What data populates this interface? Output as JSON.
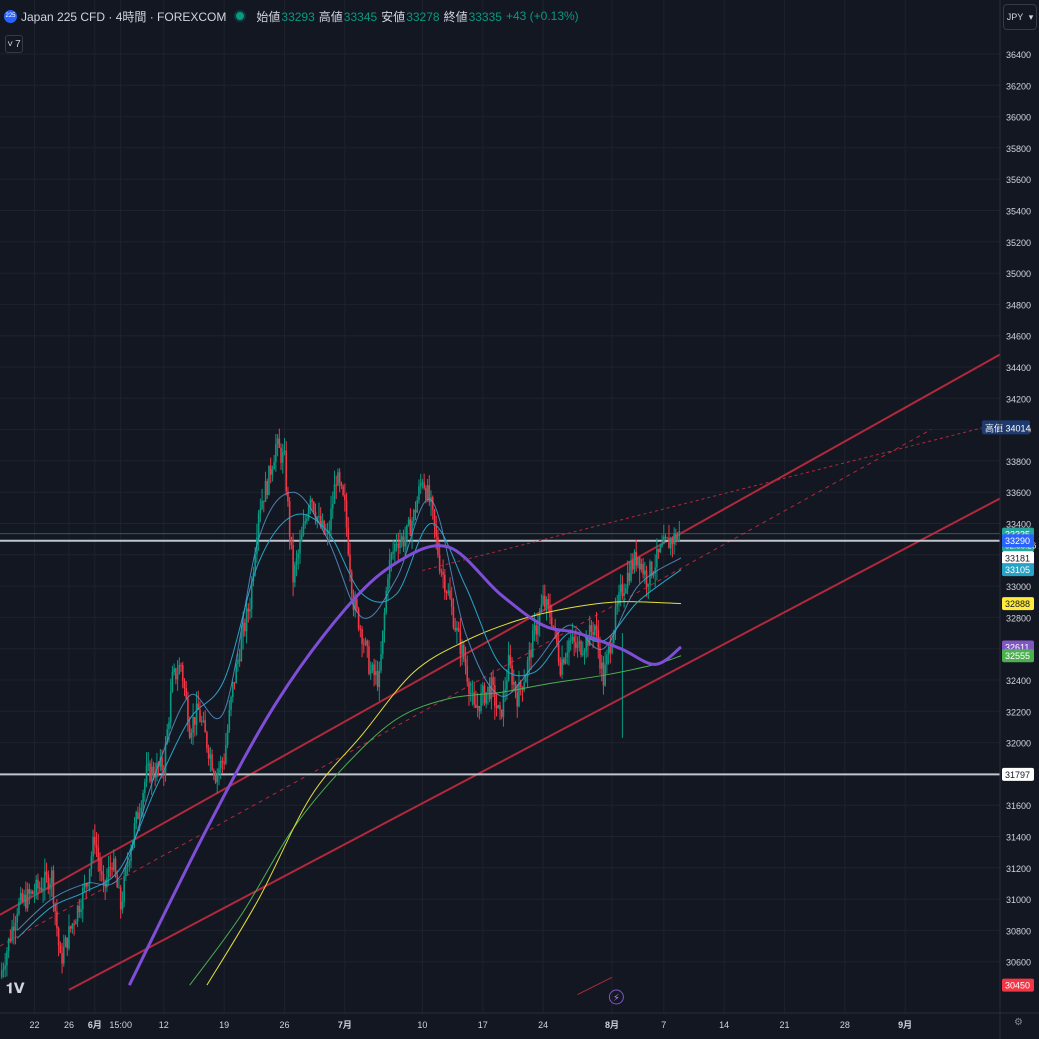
{
  "header": {
    "badge": "225",
    "title": "Japan 225 CFD · 4時間 · FOREXCOM",
    "ohlc": [
      {
        "label": "始値",
        "value": "33293"
      },
      {
        "label": "高値",
        "value": "33345"
      },
      {
        "label": "安値",
        "value": "33278"
      },
      {
        "label": "終値",
        "value": "33335"
      },
      {
        "label": "",
        "value": "+43 (+0.13%)"
      }
    ],
    "indicator_toggle": "7"
  },
  "currency": "JPY",
  "colors": {
    "background": "#131722",
    "up": "#089981",
    "down": "#f23645",
    "channel": "#b2283c",
    "ma_purple": "#7e4fd6",
    "ma_yellow": "#e6e03c",
    "ma_green": "#4caf50",
    "ma_teal": "#26a3c7"
  },
  "chart_data": {
    "type": "candlestick",
    "y_axis": {
      "range": [
        30400,
        36500
      ],
      "ticks": [
        36400,
        36200,
        36000,
        35800,
        35600,
        35400,
        35200,
        35000,
        34800,
        34600,
        34400,
        34200,
        34000,
        33800,
        33600,
        33400,
        33200,
        33000,
        32800,
        32600,
        32400,
        32200,
        32000,
        31800,
        31600,
        31400,
        31200,
        31000,
        30800,
        30600
      ]
    },
    "x_axis": {
      "range": [
        0,
        116
      ],
      "ticks": [
        {
          "label": "22",
          "t": 4
        },
        {
          "label": "26",
          "t": 8
        },
        {
          "label": "6月",
          "t": 11
        },
        {
          "label": "15:00",
          "t": 14
        },
        {
          "label": "12",
          "t": 19
        },
        {
          "label": "19",
          "t": 26
        },
        {
          "label": "26",
          "t": 33
        },
        {
          "label": "7月",
          "t": 40
        },
        {
          "label": "10",
          "t": 49
        },
        {
          "label": "17",
          "t": 56
        },
        {
          "label": "24",
          "t": 63
        },
        {
          "label": "8月",
          "t": 71
        },
        {
          "label": "7",
          "t": 77
        },
        {
          "label": "14",
          "t": 84
        },
        {
          "label": "21",
          "t": 91
        },
        {
          "label": "28",
          "t": 98
        },
        {
          "label": "9月",
          "t": 105
        }
      ]
    },
    "price_path": [
      [
        0,
        30500
      ],
      [
        2,
        30950
      ],
      [
        4,
        31050
      ],
      [
        6,
        31150
      ],
      [
        7,
        30600
      ],
      [
        8,
        30780
      ],
      [
        10,
        31100
      ],
      [
        11,
        31400
      ],
      [
        12,
        31050
      ],
      [
        13,
        31250
      ],
      [
        14,
        30950
      ],
      [
        15,
        31300
      ],
      [
        17,
        31800
      ],
      [
        19,
        31850
      ],
      [
        20,
        32400
      ],
      [
        21,
        32500
      ],
      [
        22,
        32100
      ],
      [
        23,
        32200
      ],
      [
        25,
        31800
      ],
      [
        26,
        31900
      ],
      [
        27,
        32350
      ],
      [
        28,
        32650
      ],
      [
        29,
        32900
      ],
      [
        30,
        33500
      ],
      [
        31,
        33650
      ],
      [
        32,
        33900
      ],
      [
        33,
        33800
      ],
      [
        34,
        33050
      ],
      [
        35,
        33300
      ],
      [
        36,
        33600
      ],
      [
        37,
        33400
      ],
      [
        38,
        33300
      ],
      [
        39,
        33700
      ],
      [
        40,
        33500
      ],
      [
        41,
        32900
      ],
      [
        42,
        32700
      ],
      [
        43,
        32450
      ],
      [
        44,
        32400
      ],
      [
        45,
        33100
      ],
      [
        46,
        33300
      ],
      [
        47,
        33300
      ],
      [
        48,
        33450
      ],
      [
        49,
        33700
      ],
      [
        50,
        33500
      ],
      [
        51,
        33150
      ],
      [
        52,
        32950
      ],
      [
        53,
        32700
      ],
      [
        54,
        32500
      ],
      [
        55,
        32200
      ],
      [
        56,
        32300
      ],
      [
        57,
        32350
      ],
      [
        58,
        32150
      ],
      [
        59,
        32500
      ],
      [
        60,
        32300
      ],
      [
        61,
        32450
      ],
      [
        62,
        32700
      ],
      [
        63,
        32900
      ],
      [
        64,
        32800
      ],
      [
        65,
        32500
      ],
      [
        66,
        32650
      ],
      [
        67,
        32600
      ],
      [
        68,
        32650
      ],
      [
        69,
        32750
      ],
      [
        70,
        32400
      ],
      [
        71,
        32700
      ],
      [
        72,
        32950
      ],
      [
        73,
        33100
      ],
      [
        74,
        33200
      ],
      [
        75,
        33050
      ],
      [
        76,
        33150
      ],
      [
        77,
        33250
      ],
      [
        78,
        33300
      ],
      [
        79,
        33335
      ]
    ],
    "lines": {
      "ma_purple": [
        [
          15,
          30450
        ],
        [
          24,
          31450
        ],
        [
          32,
          32250
        ],
        [
          40,
          32850
        ],
        [
          46,
          33150
        ],
        [
          52,
          33250
        ],
        [
          58,
          32950
        ],
        [
          63,
          32750
        ],
        [
          67,
          32700
        ],
        [
          72,
          32600
        ],
        [
          76,
          32500
        ],
        [
          79,
          32611
        ]
      ],
      "ma_yellow": [
        [
          24,
          30450
        ],
        [
          30,
          31000
        ],
        [
          36,
          31650
        ],
        [
          42,
          32050
        ],
        [
          48,
          32450
        ],
        [
          54,
          32650
        ],
        [
          60,
          32780
        ],
        [
          66,
          32860
        ],
        [
          72,
          32900
        ],
        [
          79,
          32888
        ]
      ],
      "ma_green": [
        [
          22,
          30450
        ],
        [
          28,
          30900
        ],
        [
          34,
          31450
        ],
        [
          40,
          31850
        ],
        [
          46,
          32150
        ],
        [
          52,
          32280
        ],
        [
          58,
          32320
        ],
        [
          64,
          32380
        ],
        [
          70,
          32430
        ],
        [
          76,
          32500
        ],
        [
          79,
          32555
        ]
      ],
      "ma_teal": [
        [
          2,
          30750
        ],
        [
          6,
          30950
        ],
        [
          10,
          31050
        ],
        [
          14,
          31200
        ],
        [
          18,
          31700
        ],
        [
          22,
          32150
        ],
        [
          26,
          32400
        ],
        [
          30,
          33150
        ],
        [
          34,
          33450
        ],
        [
          38,
          33350
        ],
        [
          42,
          32950
        ],
        [
          46,
          32950
        ],
        [
          50,
          33400
        ],
        [
          54,
          33000
        ],
        [
          58,
          32500
        ],
        [
          62,
          32450
        ],
        [
          66,
          32700
        ],
        [
          70,
          32650
        ],
        [
          74,
          32900
        ],
        [
          79,
          33105
        ]
      ],
      "ma_fast": [
        [
          2,
          30800
        ],
        [
          6,
          31000
        ],
        [
          10,
          31100
        ],
        [
          14,
          31150
        ],
        [
          18,
          31800
        ],
        [
          22,
          32300
        ],
        [
          26,
          32200
        ],
        [
          30,
          33300
        ],
        [
          34,
          33600
        ],
        [
          38,
          33300
        ],
        [
          42,
          32800
        ],
        [
          46,
          33050
        ],
        [
          50,
          33550
        ],
        [
          54,
          32700
        ],
        [
          58,
          32300
        ],
        [
          62,
          32500
        ],
        [
          66,
          32750
        ],
        [
          70,
          32600
        ],
        [
          74,
          33000
        ],
        [
          79,
          33181
        ]
      ]
    },
    "channel": {
      "upper": [
        [
          0,
          30900
        ],
        [
          116,
          34480
        ]
      ],
      "lower": [
        [
          8,
          30420
        ],
        [
          116,
          33560
        ]
      ],
      "mid": [
        [
          0,
          30700
        ],
        [
          108,
          34000
        ]
      ]
    },
    "horizontal_levels": [
      {
        "price": 33290,
        "color": "#c0c4cc"
      },
      {
        "price": 31797,
        "color": "#c0c4cc"
      },
      {
        "price": 33335,
        "color": "#2e7f76"
      }
    ],
    "price_labels": [
      {
        "text": "33335",
        "sub": "02:55:26",
        "price": 33335,
        "bg": "#26a69a",
        "fg": "#ffffff"
      },
      {
        "text": "33290",
        "price": 33290,
        "bg": "#2962ff",
        "fg": "#ffffff"
      },
      {
        "text": "33181",
        "price": 33181,
        "bg": "#ffffff",
        "fg": "#131722"
      },
      {
        "text": "33105",
        "price": 33105,
        "bg": "#26a3c7",
        "fg": "#ffffff"
      },
      {
        "text": "32888",
        "price": 32888,
        "bg": "#ffeb3b",
        "fg": "#131722"
      },
      {
        "text": "32611",
        "price": 32611,
        "bg": "#7e57c2",
        "fg": "#ffffff"
      },
      {
        "text": "32555",
        "price": 32555,
        "bg": "#4caf50",
        "fg": "#ffffff"
      },
      {
        "text": "31797",
        "price": 31797,
        "bg": "#ffffff",
        "fg": "#131722"
      },
      {
        "text": "30450",
        "price": 30450,
        "bg": "#f23645",
        "fg": "#ffffff"
      }
    ],
    "high_marker": {
      "label": "高値",
      "value": "34014",
      "price": 34014
    }
  }
}
